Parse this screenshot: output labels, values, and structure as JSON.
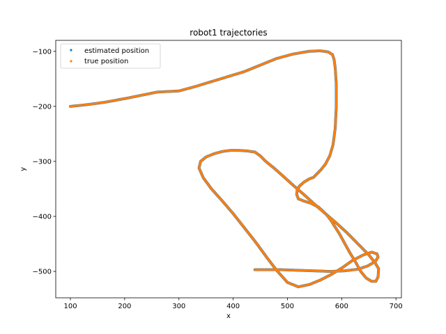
{
  "chart_data": {
    "type": "scatter",
    "title": "robot1 trajectories",
    "xlabel": "x",
    "ylabel": "y",
    "xlim": [
      73,
      710
    ],
    "ylim": [
      -548,
      -80
    ],
    "xticks": [
      100,
      200,
      300,
      400,
      500,
      600,
      700
    ],
    "xtick_labels": [
      "100",
      "200",
      "300",
      "400",
      "500",
      "600",
      "700"
    ],
    "yticks": [
      -100,
      -200,
      -300,
      -400,
      -500
    ],
    "ytick_labels": [
      "−100",
      "−200",
      "−300",
      "−400",
      "−500"
    ],
    "grid": false,
    "legend_position": "top-left",
    "series": [
      {
        "name": "estimated position",
        "color": "#1f77b4",
        "x": [
          100,
          130,
          160,
          200,
          230,
          260,
          300,
          330,
          360,
          390,
          420,
          450,
          480,
          510,
          540,
          560,
          575,
          583,
          586,
          588,
          590,
          590,
          588,
          584,
          578,
          570,
          562,
          555,
          548,
          540,
          530,
          522,
          518,
          517,
          520,
          530,
          543,
          557,
          565,
          573,
          580,
          587,
          596,
          606,
          615,
          625,
          635,
          645,
          655,
          663,
          667,
          668,
          662,
          650,
          630,
          610,
          590,
          570,
          550,
          530,
          510,
          490,
          475,
          460,
          450,
          440,
          425,
          410,
          395,
          380,
          365,
          350,
          340,
          337,
          345,
          360,
          380,
          400,
          420,
          440,
          460,
          480,
          500,
          520,
          540,
          560,
          580,
          600,
          620,
          640,
          655,
          665,
          667,
          662,
          648,
          630,
          605,
          578,
          550,
          520,
          490,
          470,
          455,
          445,
          440
        ],
        "y": [
          -200,
          -197,
          -193,
          -186,
          -180,
          -174,
          -172,
          -164,
          -155,
          -146,
          -137,
          -125,
          -113,
          -105,
          -100,
          -99,
          -101,
          -106,
          -115,
          -130,
          -160,
          -200,
          -240,
          -270,
          -290,
          -305,
          -315,
          -322,
          -329,
          -332,
          -338,
          -345,
          -352,
          -360,
          -368,
          -372,
          -376,
          -383,
          -390,
          -398,
          -407,
          -418,
          -432,
          -450,
          -466,
          -482,
          -500,
          -512,
          -518,
          -518,
          -510,
          -495,
          -485,
          -470,
          -450,
          -430,
          -412,
          -395,
          -378,
          -360,
          -343,
          -325,
          -312,
          -300,
          -290,
          -283,
          -281,
          -280,
          -280,
          -282,
          -286,
          -292,
          -300,
          -312,
          -330,
          -350,
          -372,
          -395,
          -420,
          -445,
          -472,
          -498,
          -520,
          -528,
          -524,
          -516,
          -506,
          -494,
          -480,
          -470,
          -465,
          -468,
          -474,
          -482,
          -490,
          -496,
          -499,
          -500,
          -499,
          -498,
          -497,
          -497,
          -497,
          -497,
          -497
        ]
      },
      {
        "name": "true position",
        "color": "#ff7f0e",
        "x": [
          100,
          130,
          160,
          200,
          230,
          260,
          300,
          330,
          360,
          390,
          420,
          450,
          480,
          510,
          540,
          560,
          575,
          583,
          586,
          588,
          590,
          590,
          588,
          584,
          578,
          570,
          562,
          555,
          548,
          540,
          530,
          522,
          518,
          517,
          520,
          530,
          543,
          557,
          565,
          573,
          580,
          587,
          596,
          606,
          615,
          625,
          635,
          645,
          655,
          663,
          667,
          668,
          662,
          650,
          630,
          610,
          590,
          570,
          550,
          530,
          510,
          490,
          475,
          460,
          450,
          440,
          425,
          410,
          395,
          380,
          365,
          350,
          340,
          337,
          345,
          360,
          380,
          400,
          420,
          440,
          460,
          480,
          500,
          520,
          540,
          560,
          580,
          600,
          620,
          640,
          655,
          665,
          667,
          662,
          648,
          630,
          605,
          578,
          550,
          520,
          490,
          470,
          455,
          445,
          440
        ],
        "y": [
          -200,
          -197,
          -193,
          -186,
          -180,
          -174,
          -172,
          -164,
          -155,
          -146,
          -137,
          -125,
          -113,
          -105,
          -100,
          -99,
          -101,
          -106,
          -115,
          -130,
          -160,
          -200,
          -240,
          -270,
          -290,
          -305,
          -315,
          -322,
          -329,
          -332,
          -338,
          -345,
          -352,
          -360,
          -368,
          -372,
          -376,
          -383,
          -390,
          -398,
          -407,
          -418,
          -432,
          -450,
          -466,
          -482,
          -500,
          -512,
          -518,
          -518,
          -510,
          -495,
          -485,
          -470,
          -450,
          -430,
          -412,
          -395,
          -378,
          -360,
          -343,
          -325,
          -312,
          -300,
          -290,
          -283,
          -281,
          -280,
          -280,
          -282,
          -286,
          -292,
          -300,
          -312,
          -330,
          -350,
          -372,
          -395,
          -420,
          -445,
          -472,
          -498,
          -520,
          -528,
          -524,
          -516,
          -506,
          -494,
          -480,
          -470,
          -465,
          -468,
          -474,
          -482,
          -490,
          -496,
          -499,
          -500,
          -499,
          -498,
          -497,
          -497,
          -497,
          -497,
          -497
        ]
      }
    ]
  }
}
